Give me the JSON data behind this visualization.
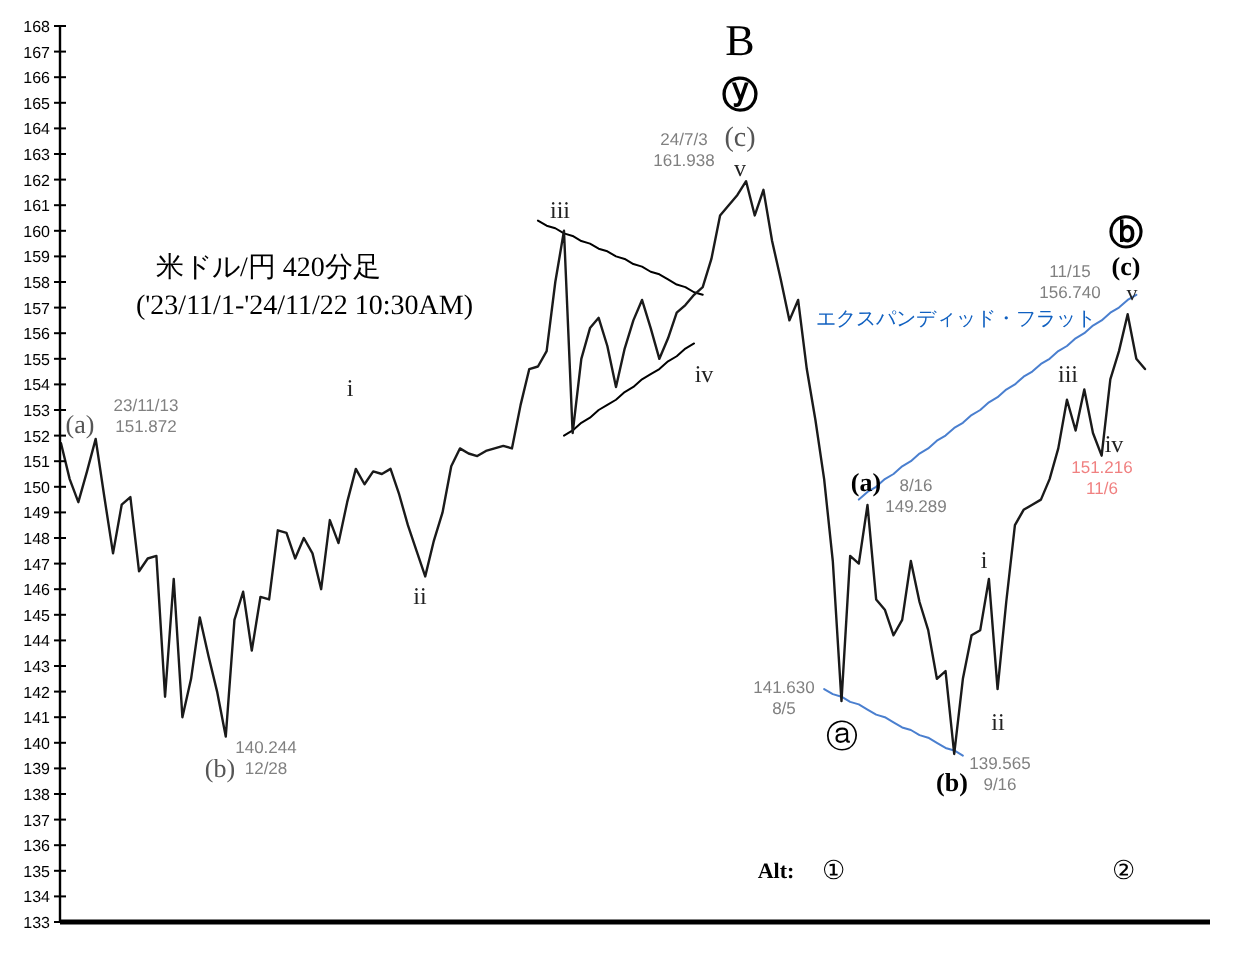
{
  "chart_data": {
    "type": "line",
    "title": "米ドル/円 420分足",
    "subtitle": "('23/11/1-'24/11/22 10:30AM)",
    "categories": [
      null,
      null,
      null,
      null,
      null,
      null,
      null,
      null,
      null,
      null,
      null,
      null,
      null,
      null,
      null,
      null,
      null,
      null,
      null,
      null,
      null,
      null,
      null,
      null,
      null,
      null,
      null,
      null,
      null,
      null,
      null,
      null,
      null,
      null,
      null,
      null,
      null,
      null,
      null,
      null,
      null,
      null,
      null,
      null,
      null,
      null,
      null,
      null,
      null,
      null,
      null,
      null,
      null,
      null,
      null,
      null,
      null,
      null,
      null,
      null,
      null,
      null,
      null,
      null,
      null,
      null,
      null,
      null,
      null,
      null,
      null,
      null,
      null,
      null,
      null,
      null,
      null,
      null,
      null,
      null,
      null,
      null,
      null,
      null,
      null,
      null,
      null,
      null,
      null,
      null,
      null,
      null,
      null,
      null,
      null,
      null,
      null,
      null,
      null,
      null,
      null,
      null,
      null,
      null,
      null,
      null,
      null,
      null,
      null,
      null,
      null,
      null,
      null,
      null,
      null,
      null,
      null,
      null,
      null,
      null,
      null,
      null,
      null,
      null,
      null,
      null
    ],
    "ylim": [
      133,
      168
    ],
    "yticks": [
      133,
      134,
      135,
      136,
      137,
      138,
      139,
      140,
      141,
      142,
      143,
      144,
      145,
      146,
      147,
      148,
      149,
      150,
      151,
      152,
      153,
      154,
      155,
      156,
      157,
      158,
      159,
      160,
      161,
      162,
      163,
      164,
      165,
      166,
      167,
      168
    ],
    "tick_labels": "y",
    "series": [
      {
        "color": "#1a1a1a",
        "values": [
          151.7,
          150.3,
          149.4,
          150.6,
          151.872,
          149.6,
          147.4,
          149.3,
          149.6,
          146.7,
          147.2,
          147.3,
          141.8,
          146.4,
          141.0,
          142.5,
          144.9,
          143.4,
          142.0,
          140.244,
          144.8,
          145.9,
          143.6,
          145.7,
          145.6,
          148.3,
          148.2,
          147.2,
          148.0,
          147.4,
          146.0,
          148.7,
          147.8,
          149.4,
          150.7,
          150.1,
          150.6,
          150.5,
          150.7,
          149.7,
          148.5,
          147.5,
          146.5,
          147.9,
          149.0,
          150.8,
          151.5,
          151.3,
          151.2,
          151.4,
          151.5,
          151.6,
          151.5,
          153.2,
          154.6,
          154.7,
          155.3,
          158.0,
          160.0,
          152.1,
          155.0,
          156.2,
          156.6,
          155.5,
          153.9,
          155.4,
          156.5,
          157.3,
          156.2,
          155.0,
          155.8,
          156.8,
          157.1,
          157.5,
          157.8,
          158.9,
          160.6,
          161.0,
          161.4,
          161.938,
          160.6,
          161.6,
          159.6,
          158.1,
          156.5,
          157.3,
          154.6,
          152.6,
          150.3,
          147.1,
          141.63,
          147.3,
          147.0,
          149.289,
          145.6,
          145.2,
          144.2,
          144.8,
          147.1,
          145.5,
          144.4,
          142.5,
          142.8,
          139.565,
          142.5,
          144.2,
          144.4,
          146.4,
          142.1,
          145.5,
          148.5,
          149.1,
          149.3,
          149.5,
          150.3,
          151.5,
          153.4,
          152.2,
          153.8,
          152.1,
          151.216,
          154.2,
          155.3,
          156.74,
          155.0,
          154.6
        ]
      },
      {
        "color": "#000000",
        "values": [
          null,
          null,
          null,
          null,
          null,
          null,
          null,
          null,
          null,
          null,
          null,
          null,
          null,
          null,
          null,
          null,
          null,
          null,
          null,
          null,
          null,
          null,
          null,
          null,
          null,
          null,
          null,
          null,
          null,
          null,
          null,
          null,
          null,
          null,
          null,
          null,
          null,
          null,
          null,
          null,
          null,
          null,
          null,
          null,
          null,
          null,
          null,
          null,
          null,
          null,
          null,
          null,
          null,
          null,
          null,
          160.4,
          160.2,
          160.1,
          159.9,
          159.8,
          159.6,
          159.5,
          159.3,
          159.2,
          159.0,
          158.9,
          158.7,
          158.6,
          158.4,
          158.3,
          158.1,
          157.9,
          157.8,
          157.6,
          157.5,
          null,
          null,
          null,
          null,
          null,
          null,
          null,
          null,
          null,
          null,
          null,
          null,
          null,
          null,
          null,
          null,
          null,
          null,
          null,
          null,
          null,
          null,
          null,
          null,
          null,
          null,
          null,
          null,
          null,
          null,
          null,
          null,
          null,
          null,
          null,
          null,
          null,
          null,
          null,
          null,
          null,
          null,
          null,
          null,
          null,
          null,
          null,
          null,
          null,
          null,
          null
        ]
      },
      {
        "color": "#000000",
        "values": [
          null,
          null,
          null,
          null,
          null,
          null,
          null,
          null,
          null,
          null,
          null,
          null,
          null,
          null,
          null,
          null,
          null,
          null,
          null,
          null,
          null,
          null,
          null,
          null,
          null,
          null,
          null,
          null,
          null,
          null,
          null,
          null,
          null,
          null,
          null,
          null,
          null,
          null,
          null,
          null,
          null,
          null,
          null,
          null,
          null,
          null,
          null,
          null,
          null,
          null,
          null,
          null,
          null,
          null,
          null,
          null,
          null,
          null,
          152.0,
          152.2,
          152.5,
          152.7,
          153.0,
          153.2,
          153.4,
          153.7,
          153.9,
          154.2,
          154.4,
          154.6,
          154.9,
          155.1,
          155.4,
          155.6,
          null,
          null,
          null,
          null,
          null,
          null,
          null,
          null,
          null,
          null,
          null,
          null,
          null,
          null,
          null,
          null,
          null,
          null,
          null,
          null,
          null,
          null,
          null,
          null,
          null,
          null,
          null,
          null,
          null,
          null,
          null,
          null,
          null,
          null,
          null,
          null,
          null,
          null,
          null,
          null,
          null,
          null,
          null,
          null,
          null,
          null,
          null,
          null,
          null,
          null,
          null,
          null
        ]
      },
      {
        "color": "#4a7fcf",
        "values": [
          null,
          null,
          null,
          null,
          null,
          null,
          null,
          null,
          null,
          null,
          null,
          null,
          null,
          null,
          null,
          null,
          null,
          null,
          null,
          null,
          null,
          null,
          null,
          null,
          null,
          null,
          null,
          null,
          null,
          null,
          null,
          null,
          null,
          null,
          null,
          null,
          null,
          null,
          null,
          null,
          null,
          null,
          null,
          null,
          null,
          null,
          null,
          null,
          null,
          null,
          null,
          null,
          null,
          null,
          null,
          null,
          null,
          null,
          null,
          null,
          null,
          null,
          null,
          null,
          null,
          null,
          null,
          null,
          null,
          null,
          null,
          null,
          null,
          null,
          null,
          null,
          null,
          null,
          null,
          null,
          null,
          null,
          null,
          null,
          null,
          null,
          null,
          null,
          null,
          null,
          null,
          null,
          149.5,
          149.8,
          150.0,
          150.3,
          150.5,
          150.8,
          151.0,
          151.3,
          151.5,
          151.8,
          152.0,
          152.3,
          152.5,
          152.8,
          153.0,
          153.3,
          153.5,
          153.8,
          154.0,
          154.3,
          154.5,
          154.8,
          155.0,
          155.3,
          155.5,
          155.8,
          156.0,
          156.3,
          156.5,
          156.8,
          157.0,
          157.3,
          157.5,
          null
        ]
      },
      {
        "color": "#4a7fcf",
        "values": [
          null,
          null,
          null,
          null,
          null,
          null,
          null,
          null,
          null,
          null,
          null,
          null,
          null,
          null,
          null,
          null,
          null,
          null,
          null,
          null,
          null,
          null,
          null,
          null,
          null,
          null,
          null,
          null,
          null,
          null,
          null,
          null,
          null,
          null,
          null,
          null,
          null,
          null,
          null,
          null,
          null,
          null,
          null,
          null,
          null,
          null,
          null,
          null,
          null,
          null,
          null,
          null,
          null,
          null,
          null,
          null,
          null,
          null,
          null,
          null,
          null,
          null,
          null,
          null,
          null,
          null,
          null,
          null,
          null,
          null,
          null,
          null,
          null,
          null,
          null,
          null,
          null,
          null,
          null,
          null,
          null,
          null,
          null,
          null,
          null,
          null,
          null,
          null,
          142.1,
          141.9,
          141.8,
          141.6,
          141.5,
          141.3,
          141.1,
          141.0,
          140.8,
          140.6,
          140.5,
          140.3,
          140.2,
          140.0,
          139.8,
          139.7,
          139.5,
          null,
          null,
          null,
          null,
          null,
          null,
          null,
          null,
          null,
          null,
          null,
          null,
          null,
          null,
          null,
          null,
          null,
          null,
          null,
          null,
          null
        ]
      }
    ],
    "annotations": [
      "(a)",
      "23/11/13\n151.872",
      "(b)",
      "140.244\n12/28",
      "i",
      "ii",
      "iii",
      "iv",
      "B",
      "ⓨ",
      "(c)",
      "24/7/3\n161.938",
      "v",
      "(a)",
      "8/16\n149.289",
      "141.630\n8/5",
      "ⓐ",
      "(b)",
      "139.565\n9/16",
      "i",
      "ii",
      "iii",
      "iv",
      "151.216\n11/6",
      "ⓑ",
      "(c)",
      "11/15\n156.740",
      "v",
      "エクスパンディッド・フラット",
      "Alt:",
      "①",
      "②"
    ]
  }
}
